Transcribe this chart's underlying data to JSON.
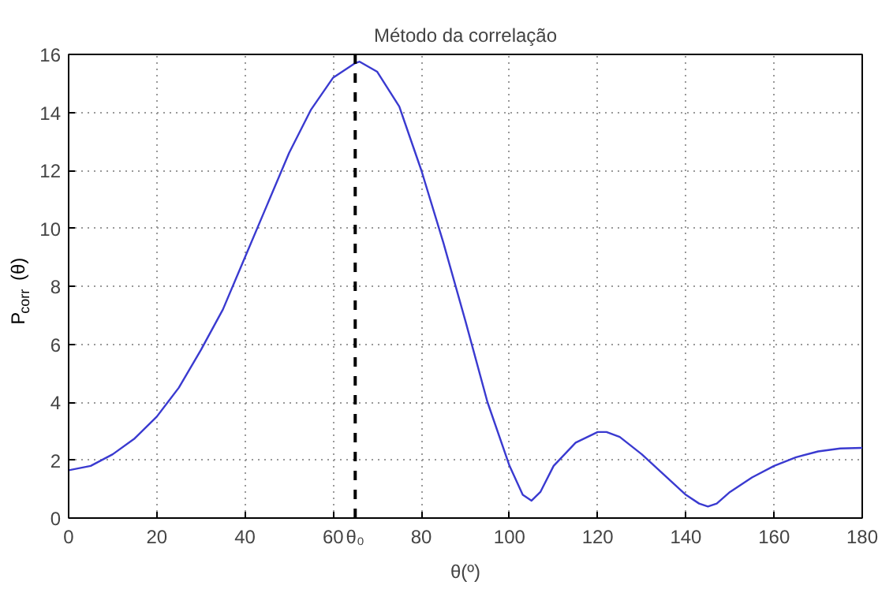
{
  "chart_data": {
    "type": "line",
    "title": "Método da correlação",
    "xlabel": "θ(º)",
    "ylabel": "P$_{corr}$(θ)",
    "x": [
      0,
      5,
      10,
      15,
      20,
      25,
      30,
      35,
      40,
      45,
      50,
      55,
      60,
      65,
      66,
      70,
      75,
      80,
      85,
      90,
      95,
      100,
      103,
      105,
      107,
      110,
      115,
      120,
      122,
      125,
      130,
      135,
      140,
      143,
      145,
      147,
      150,
      155,
      160,
      165,
      170,
      175,
      180
    ],
    "series": [
      {
        "color": "#3a3ad0",
        "values": [
          1.65,
          1.8,
          2.2,
          2.75,
          3.5,
          4.5,
          5.8,
          7.2,
          9.0,
          10.8,
          12.6,
          14.1,
          15.2,
          15.7,
          15.75,
          15.4,
          14.2,
          12.0,
          9.5,
          6.8,
          4.0,
          1.8,
          0.8,
          0.6,
          0.9,
          1.8,
          2.6,
          2.97,
          2.97,
          2.8,
          2.2,
          1.5,
          0.8,
          0.5,
          0.4,
          0.5,
          0.9,
          1.4,
          1.8,
          2.1,
          2.3,
          2.4,
          2.42
        ]
      }
    ],
    "xlim": [
      0,
      180
    ],
    "ylim": [
      0,
      16
    ],
    "xticks": [
      0,
      20,
      40,
      60,
      {
        "value": 65,
        "label": "θ₀"
      },
      80,
      100,
      120,
      140,
      160,
      180
    ],
    "yticks": [
      0,
      2,
      4,
      6,
      8,
      10,
      12,
      14,
      16
    ],
    "ref_lines": [
      {
        "axis": "x",
        "value": 65,
        "color": "#000000",
        "line_style": "dashed"
      }
    ],
    "grid": true,
    "line_style": "solid"
  }
}
